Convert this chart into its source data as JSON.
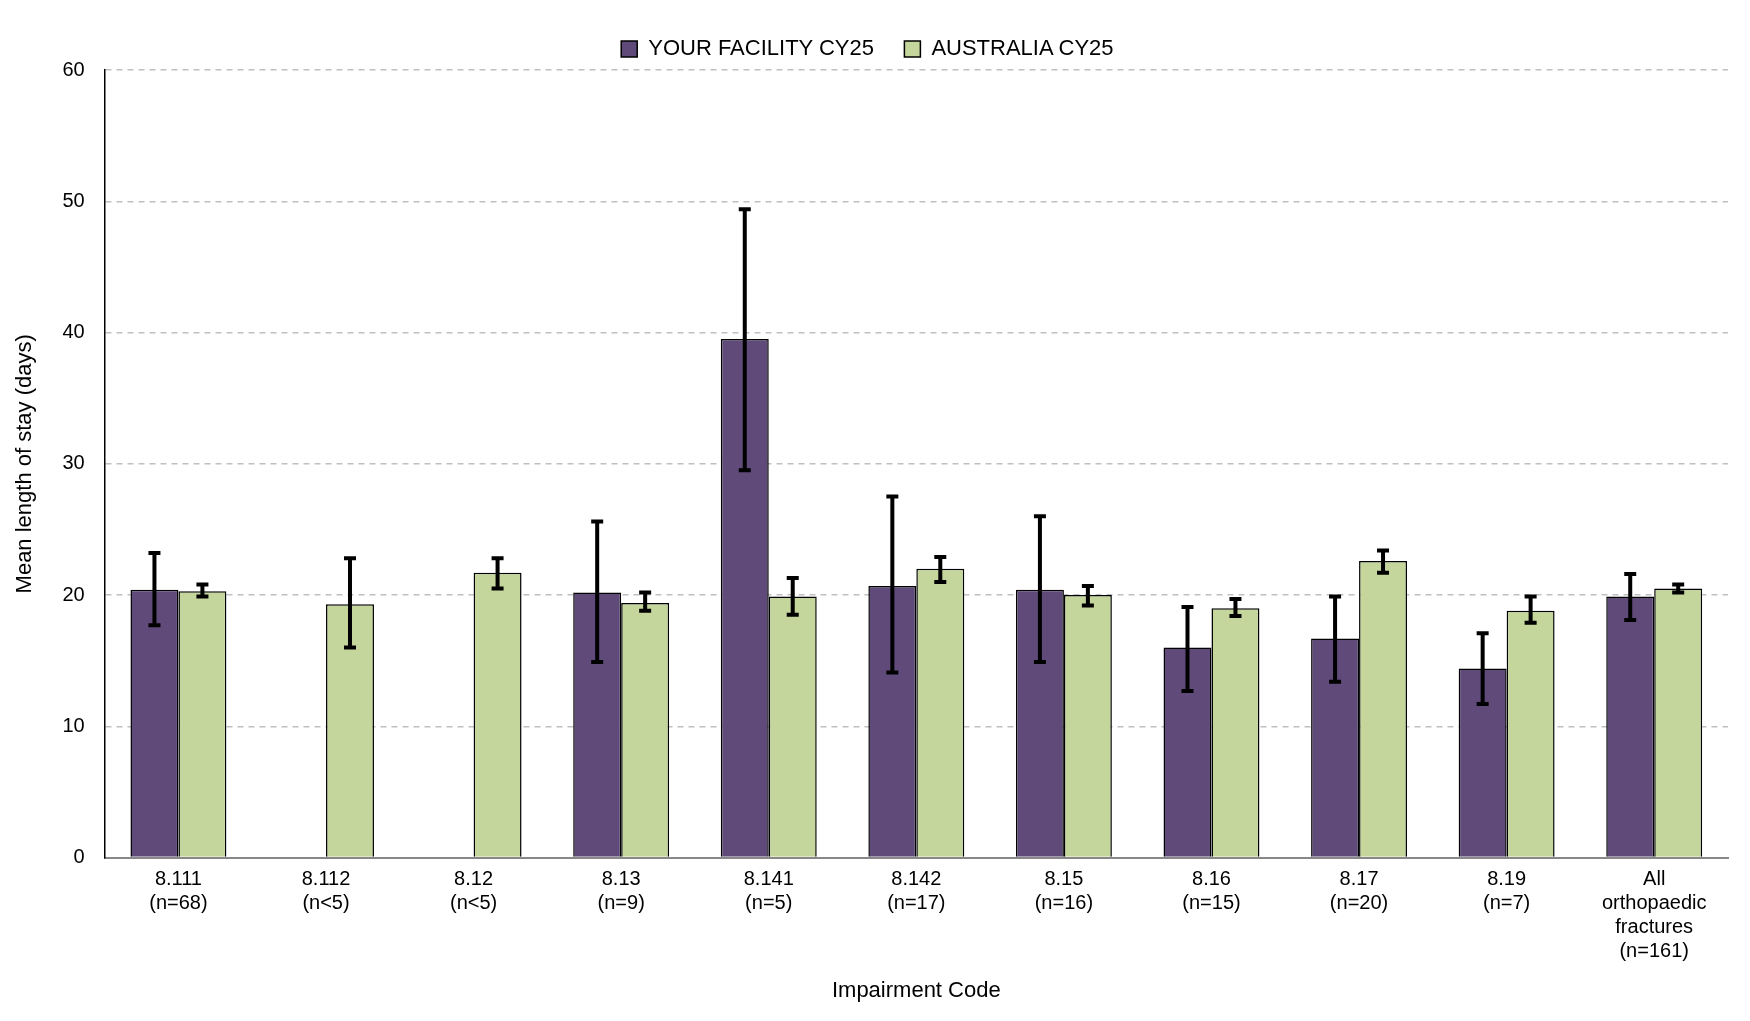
{
  "chart_data": {
    "type": "bar",
    "xlabel": "Impairment Code",
    "ylabel": "Mean length of stay (days)",
    "categories": [
      "8.111\n(n=68)",
      "8.112\n(n<5)",
      "8.12\n(n<5)",
      "8.13\n(n=9)",
      "8.141\n(n=5)",
      "8.142\n(n=17)",
      "8.15\n(n=16)",
      "8.16\n(n=15)",
      "8.17\n(n=20)",
      "8.19\n(n=7)",
      "All\northopaedic\nfractures\n(n=161)"
    ],
    "series": [
      {
        "name": "YOUR FACILITY CY25",
        "color": "#5f4a7a",
        "values": [
          20.4,
          0,
          0,
          20.2,
          39.5,
          20.7,
          20.4,
          16.0,
          16.7,
          14.4,
          19.9
        ],
        "errors": [
          [
            17.7,
            23.2
          ],
          null,
          null,
          [
            14.9,
            25.6
          ],
          [
            29.5,
            49.4
          ],
          [
            14.1,
            27.5
          ],
          [
            14.9,
            26.0
          ],
          [
            12.7,
            19.1
          ],
          [
            13.4,
            19.9
          ],
          [
            11.7,
            17.1
          ],
          [
            18.1,
            21.6
          ]
        ]
      },
      {
        "name": "AUSTRALIA CY25",
        "color": "#c4d69b",
        "values": [
          20.3,
          19.3,
          21.7,
          19.4,
          19.9,
          22.0,
          20.0,
          19.0,
          22.6,
          18.8,
          20.5
        ],
        "errors": [
          [
            19.9,
            20.8
          ],
          [
            16.0,
            22.8
          ],
          [
            20.5,
            22.8
          ],
          [
            18.8,
            20.2
          ],
          [
            18.5,
            21.3
          ],
          [
            21.0,
            22.9
          ],
          [
            19.2,
            20.7
          ],
          [
            18.4,
            19.7
          ],
          [
            21.7,
            23.4
          ],
          [
            17.9,
            19.9
          ],
          [
            20.2,
            20.8
          ]
        ]
      }
    ],
    "ylim": [
      0,
      60
    ],
    "yticks": [
      0,
      10,
      20,
      30,
      40,
      50,
      60
    ],
    "grid": "y",
    "legend": "top"
  }
}
